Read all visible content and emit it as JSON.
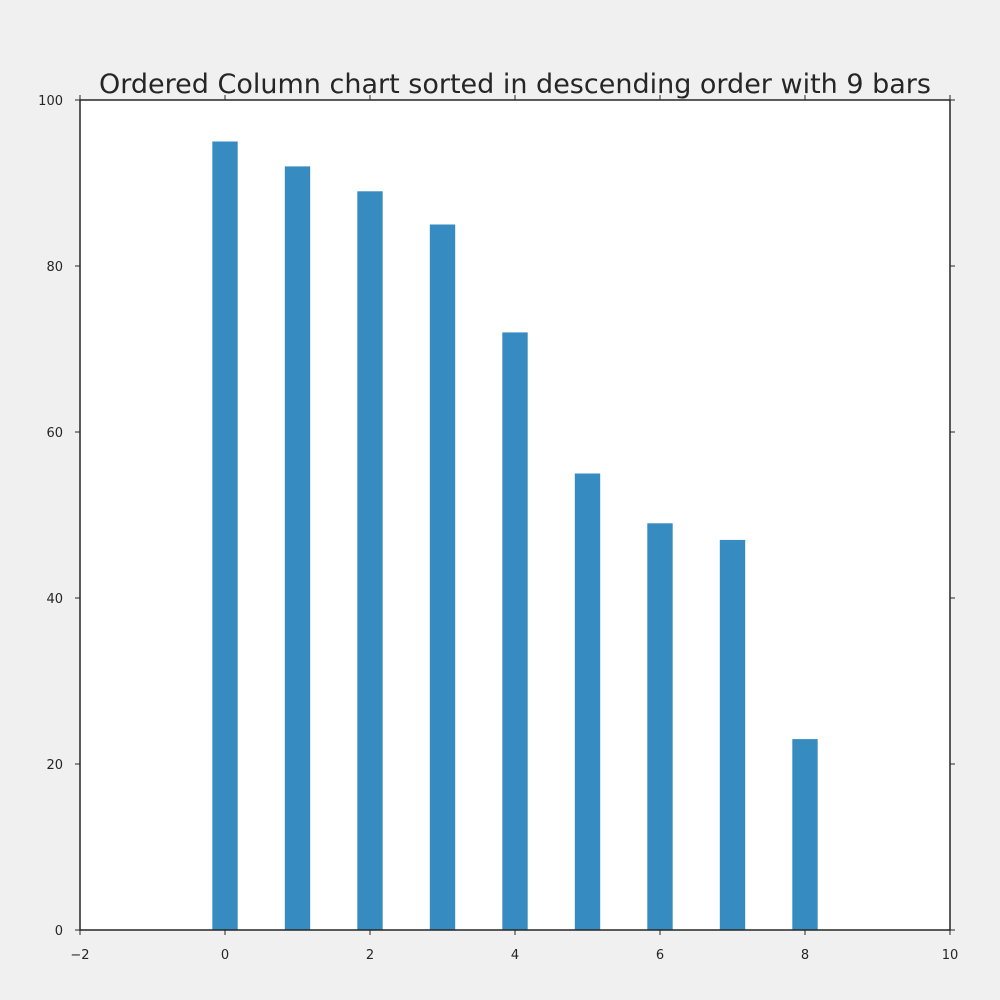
{
  "chart_data": {
    "type": "bar",
    "title": "Ordered Column chart sorted in descending order with 9 bars",
    "xlabel": "",
    "ylabel": "",
    "x": [
      0,
      1,
      2,
      3,
      4,
      5,
      6,
      7,
      8
    ],
    "values": [
      95,
      92,
      89,
      85,
      72,
      55,
      49,
      47,
      23
    ],
    "xlim": [
      -2,
      10
    ],
    "ylim": [
      0,
      100
    ],
    "x_ticks": [
      -2,
      0,
      2,
      4,
      6,
      8,
      10
    ],
    "y_ticks": [
      0,
      20,
      40,
      60,
      80,
      100
    ],
    "x_tick_labels": [
      "−2",
      "0",
      "2",
      "4",
      "6",
      "8",
      "10"
    ],
    "y_tick_labels": [
      "0",
      "20",
      "40",
      "60",
      "80",
      "100"
    ],
    "bar_width": 0.35,
    "grid": false,
    "legend": "none",
    "colors": {
      "bar": "#368bc1",
      "plot_background": "#ffffff",
      "figure_background": "#f0f0f0",
      "axis": "#262626"
    }
  }
}
